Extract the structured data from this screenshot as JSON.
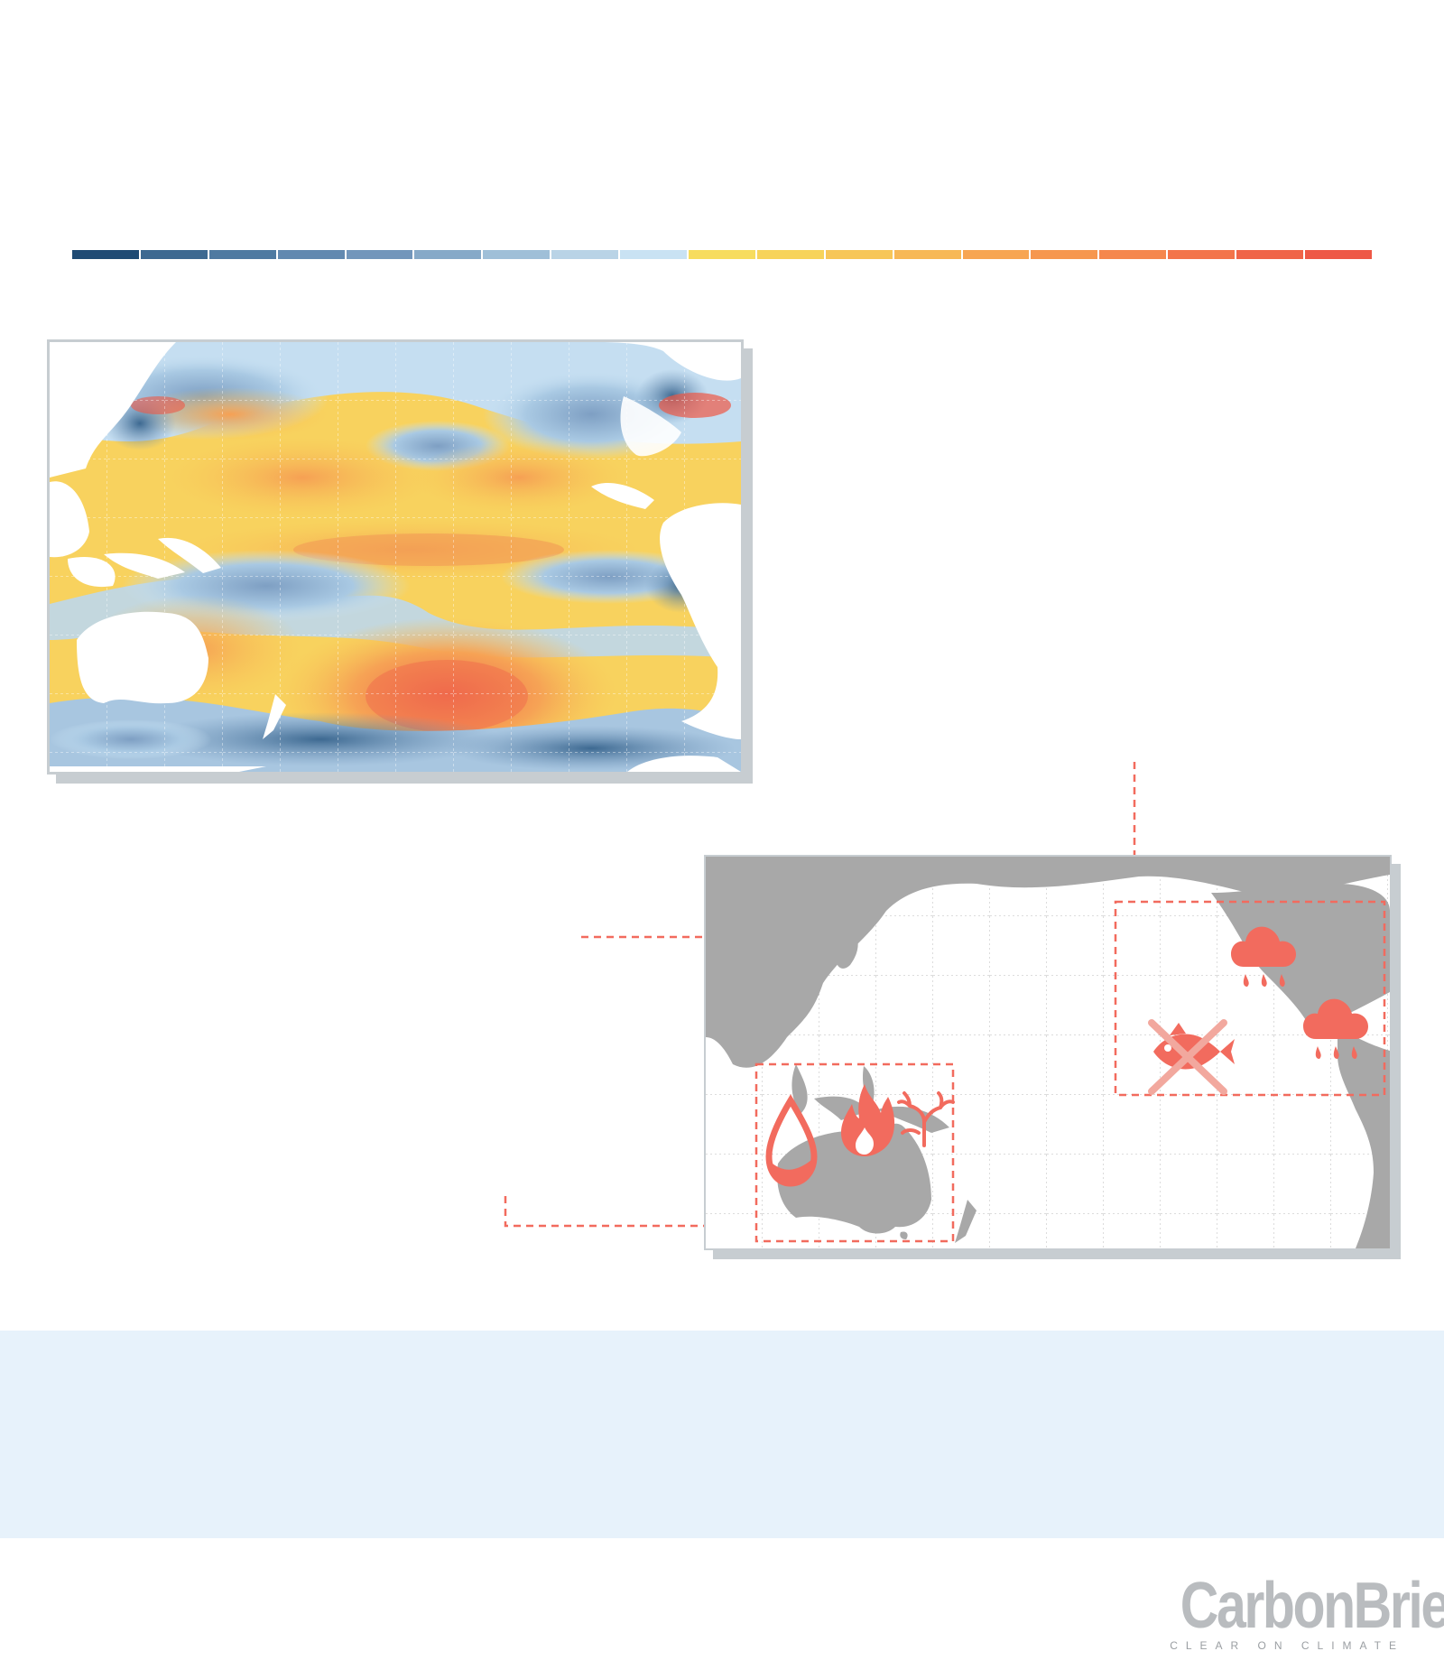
{
  "legend": {
    "colors": [
      "#1f4b74",
      "#3d6991",
      "#4f7aa1",
      "#6289b0",
      "#7296bb",
      "#86a9c8",
      "#9fbfd8",
      "#b9d3e6",
      "#c9e2f3",
      "#f7dc5e",
      "#f7d35a",
      "#f7c658",
      "#f7b856",
      "#f7a552",
      "#f6974f",
      "#f5874d",
      "#f3744a",
      "#f06448",
      "#ee5846"
    ]
  },
  "sst_map": {
    "description_colors": {
      "land": "#ffffff",
      "grid": "#ffffff"
    }
  },
  "impact_map": {
    "land_color": "#a8a8a8",
    "ocean_color": "#ffffff",
    "accent_color": "#f26b5e",
    "regions": [
      {
        "id": "australasia",
        "icons": [
          "drought-icon",
          "fire-icon",
          "coral-icon"
        ]
      },
      {
        "id": "americas",
        "icons": [
          "no-fish-icon",
          "rain-cloud-icon",
          "rain-cloud-icon"
        ]
      }
    ]
  },
  "logo": {
    "wordmark": "CarbonBrief",
    "tagline": "CLEAR ON CLIMATE"
  }
}
